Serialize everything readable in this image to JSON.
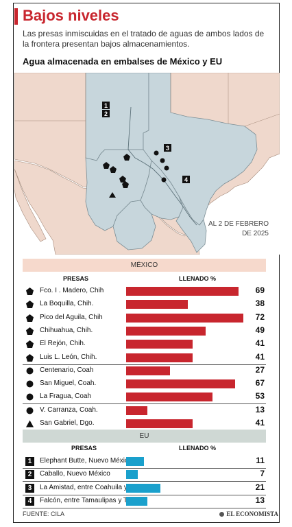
{
  "header": {
    "title": "Bajos niveles",
    "subtitle": "Las presas inmiscuidas en el tratado de aguas de ambos lados de la frontera presentan bajos almacenamientos.",
    "map_title": "Agua almacenada en embalses de México y EU",
    "date_line1": "AL 2 DE FEBRERO",
    "date_line2": "DE 2025"
  },
  "colors": {
    "accent": "#c8262e",
    "mexico_bar": "#c8262e",
    "eu_bar": "#1aa0cc",
    "land": "#efd8cc",
    "highlight": "#c7d6dc",
    "water": "#ffffff"
  },
  "map_labels": [
    "1",
    "2",
    "3",
    "4"
  ],
  "chart_data": [
    {
      "type": "bar",
      "section": "MÉXICO",
      "column_presas": "PRESAS",
      "column_llenado": "LLENADO %",
      "xlim": [
        0,
        75
      ],
      "rows": [
        {
          "name": "Fco. I . Madero, Chih",
          "value": 69,
          "icon": "pentagon-icon"
        },
        {
          "name": "La Boquilla, Chih.",
          "value": 38,
          "icon": "pentagon-icon"
        },
        {
          "name": "Pico del Aguila, Chih",
          "value": 72,
          "icon": "pentagon-icon"
        },
        {
          "name": "Chihuahua, Chih.",
          "value": 49,
          "icon": "pentagon-icon"
        },
        {
          "name": "El Rejón, Chih.",
          "value": 41,
          "icon": "pentagon-icon"
        },
        {
          "name": "Luis L. León, Chih.",
          "value": 41,
          "icon": "pentagon-icon"
        },
        {
          "name": "Centenario, Coah",
          "value": 27,
          "icon": "circle-icon"
        },
        {
          "name": "San Miguel, Coah.",
          "value": 67,
          "icon": "circle-icon"
        },
        {
          "name": "La Fragua, Coah",
          "value": 53,
          "icon": "circle-icon"
        },
        {
          "name": "V. Carranza, Coah.",
          "value": 13,
          "icon": "circle-icon"
        },
        {
          "name": "San Gabriel, Dgo.",
          "value": 41,
          "icon": "triangle-icon"
        }
      ]
    },
    {
      "type": "bar",
      "section": "EU",
      "column_presas": "PRESAS",
      "column_llenado": "LLENADO %",
      "xlim": [
        0,
        75
      ],
      "rows": [
        {
          "name": "Elephant Butte, Nuevo México",
          "value": 11,
          "icon": "number-1-icon",
          "label": "1"
        },
        {
          "name": "Caballo, Nuevo México",
          "value": 7,
          "icon": "number-2-icon",
          "label": "2"
        },
        {
          "name": "La Amistad, entre Coahuila y Texas",
          "value": 21,
          "icon": "number-3-icon",
          "label": "3"
        },
        {
          "name": "Falcón, entre Tamaulipas y Texas",
          "value": 13,
          "icon": "number-4-icon",
          "label": "4"
        }
      ]
    }
  ],
  "footer": {
    "source": "FUENTE: CILA",
    "brand": "EL ECONOMISTA"
  }
}
